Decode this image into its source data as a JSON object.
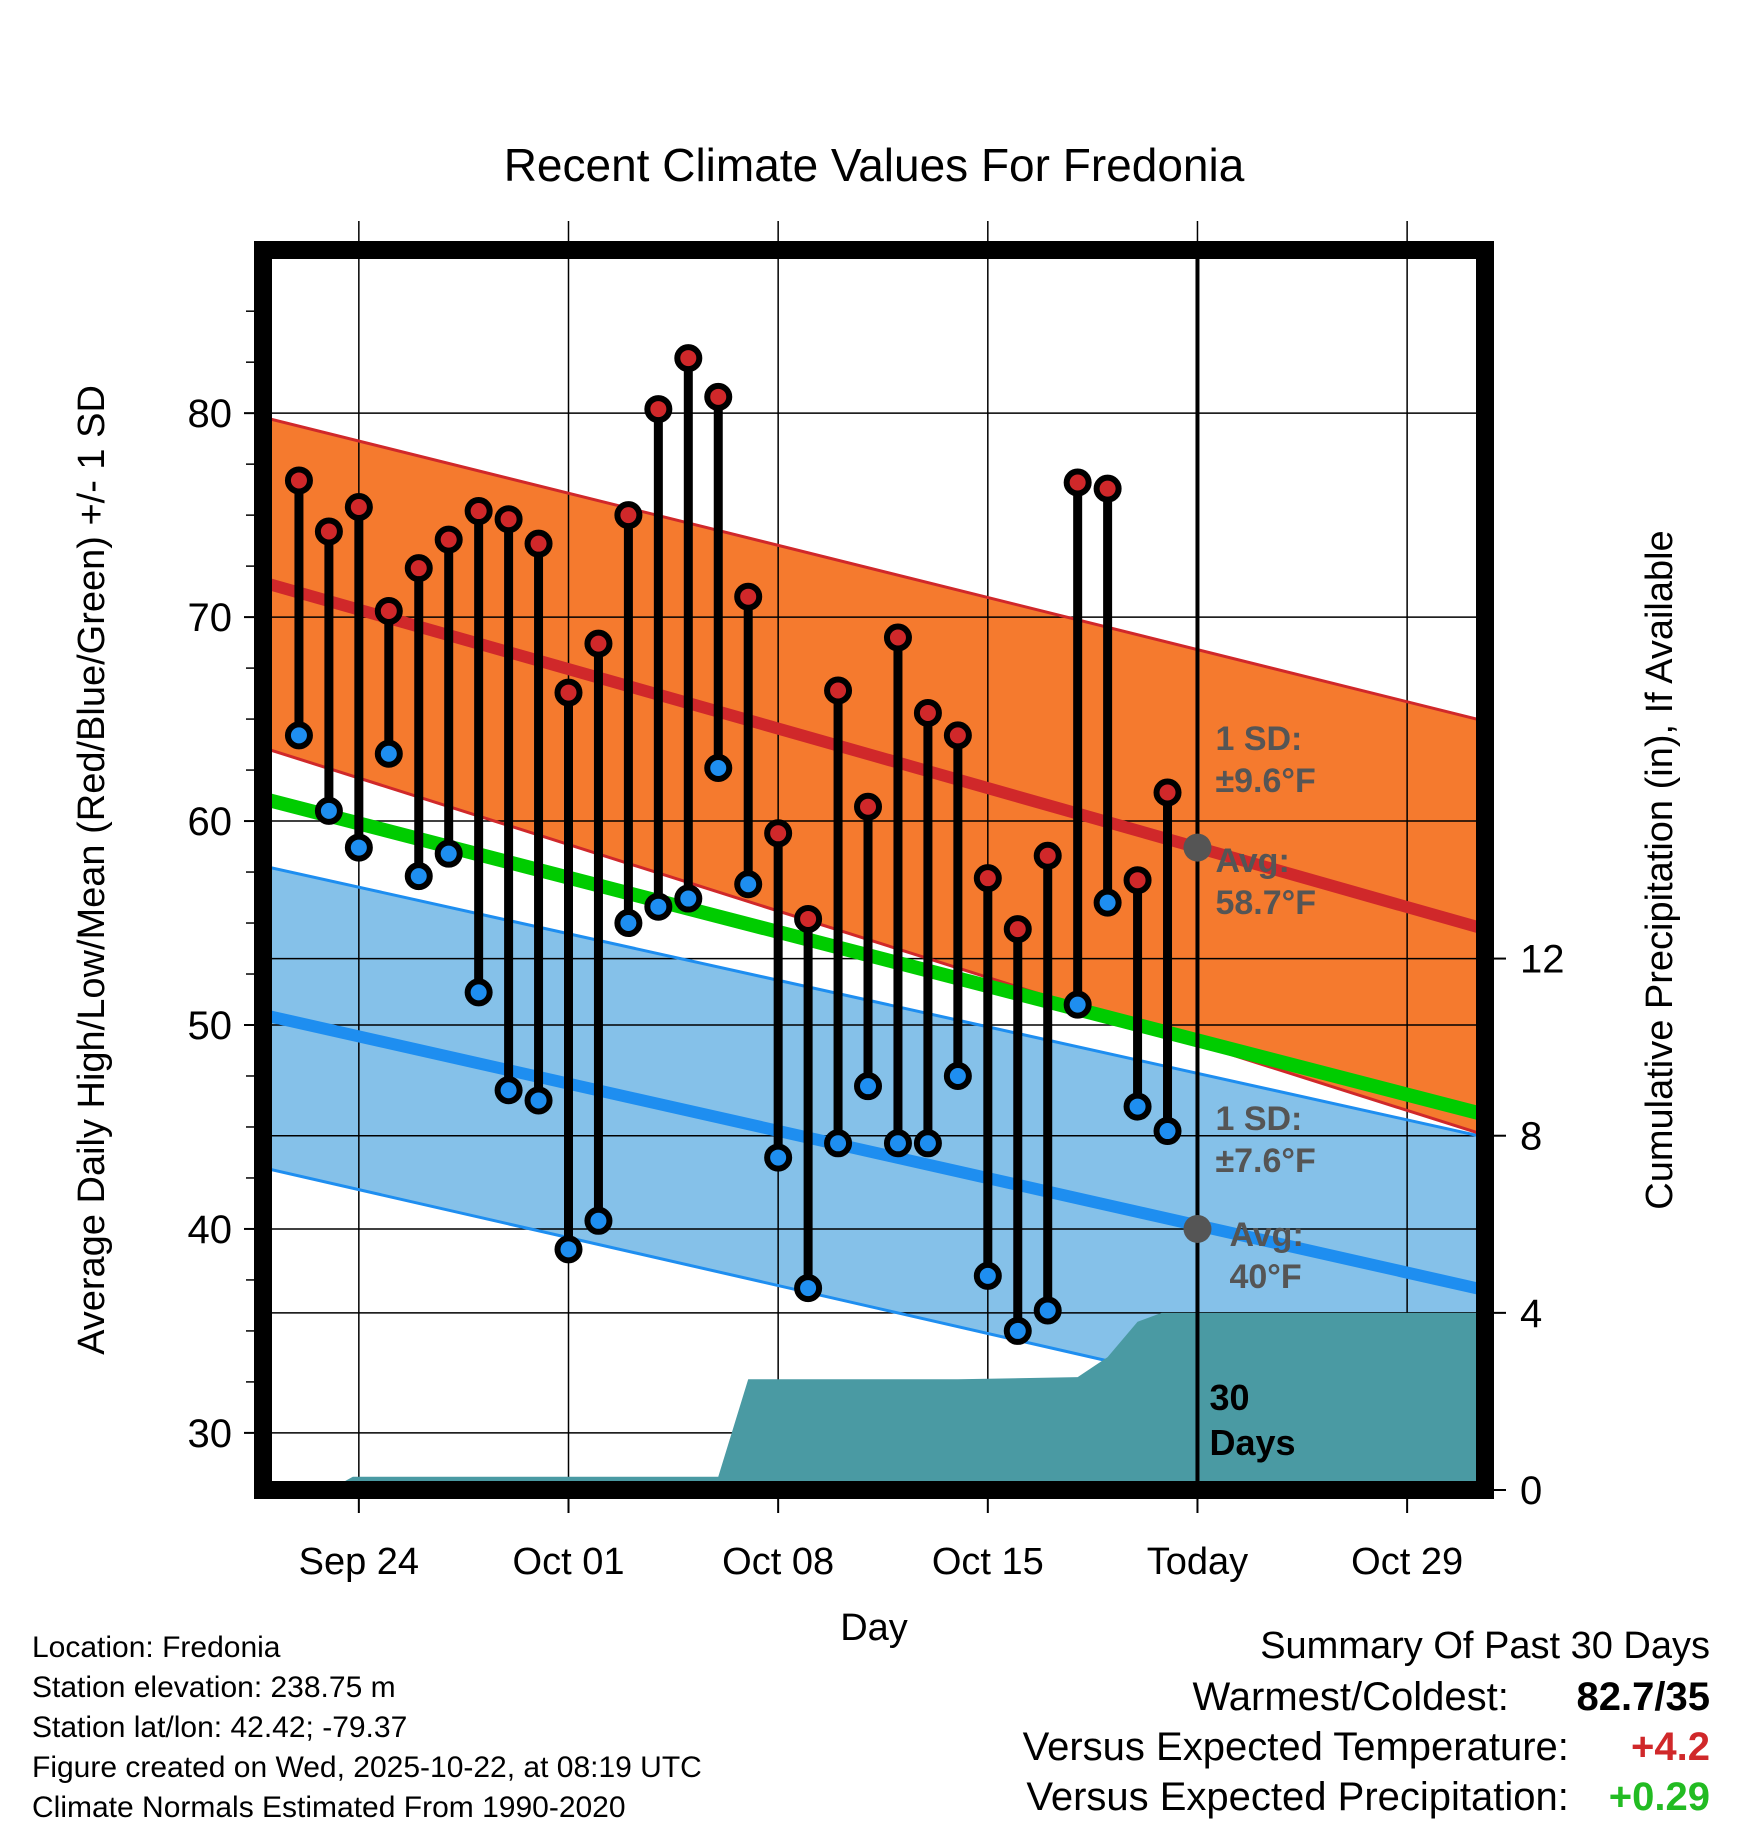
{
  "chart_data": {
    "type": "line",
    "title": "Recent Climate Values For Fredonia",
    "xlabel": "Day",
    "ylabel": "Average Daily High/Low/Mean (Red/Blue/Green) +/- 1 SD",
    "y2label": "Cumulative Precipitation (in), If Available",
    "xlim": [
      -3.2,
      37.6
    ],
    "ylim": [
      27.2,
      88
    ],
    "y2lim": [
      0,
      28
    ],
    "x_ticks": [
      {
        "x": 0,
        "label": "Sep 24"
      },
      {
        "x": 7,
        "label": "Oct 01"
      },
      {
        "x": 14,
        "label": "Oct 08"
      },
      {
        "x": 21,
        "label": "Oct 15"
      },
      {
        "x": 28,
        "label": "Today"
      },
      {
        "x": 35,
        "label": "Oct 29"
      }
    ],
    "y_ticks": [
      30,
      40,
      50,
      60,
      70,
      80
    ],
    "y_minor_ticks": [
      32.5,
      35,
      37.5,
      42.5,
      45,
      47.5,
      52.5,
      55,
      57.5,
      62.5,
      65,
      67.5,
      72.5,
      75,
      77.5,
      82.5,
      85
    ],
    "y2_ticks": [
      0,
      4,
      8,
      12
    ],
    "today_x": 28,
    "normals_x": [
      -3.2,
      37.6
    ],
    "normal_high": [
      71.7,
      54.7
    ],
    "normal_high_upper": [
      79.8,
      64.9
    ],
    "normal_high_lower": [
      63.6,
      44.6
    ],
    "normal_low": [
      50.5,
      37.0
    ],
    "normal_low_upper": [
      57.8,
      44.5
    ],
    "normal_low_lower": [
      43.0,
      29.3
    ],
    "normal_mean": [
      61.1,
      45.6
    ],
    "days": [
      -2,
      -1,
      0,
      1,
      2,
      3,
      4,
      5,
      6,
      7,
      8,
      9,
      10,
      11,
      12,
      13,
      14,
      15,
      16,
      17,
      18,
      19,
      20,
      21,
      22,
      23,
      24,
      25,
      26,
      27
    ],
    "highs": [
      76.7,
      74.2,
      75.4,
      70.3,
      72.4,
      73.8,
      75.2,
      74.8,
      73.6,
      66.3,
      68.7,
      75.0,
      80.2,
      82.7,
      80.8,
      71.0,
      59.4,
      55.2,
      66.4,
      60.7,
      69.0,
      65.3,
      64.2,
      57.2,
      54.7,
      58.3,
      76.6,
      76.3,
      57.1,
      61.4
    ],
    "lows": [
      64.2,
      60.5,
      58.7,
      63.3,
      57.3,
      58.4,
      51.6,
      46.8,
      46.3,
      39.0,
      40.4,
      55.0,
      55.8,
      56.2,
      62.6,
      56.9,
      43.5,
      37.1,
      44.2,
      47.0,
      44.2,
      44.2,
      47.5,
      37.7,
      35.0,
      36.0,
      51.0,
      56.0,
      46.0,
      44.8
    ],
    "precip": {
      "x": [
        -3.2,
        -1.0,
        -0.2,
        5.0,
        12.0,
        13.0,
        13.9,
        20.0,
        24.0,
        25.0,
        26.0,
        26.8,
        27.5,
        37.6
      ],
      "y": [
        0,
        0,
        0.3,
        0.3,
        0.3,
        2.5,
        2.5,
        2.5,
        2.55,
        3.0,
        3.8,
        4.0,
        4.0,
        4.0
      ]
    },
    "annotations": {
      "high_sd_label": "1 SD:",
      "high_sd_value": "±9.6°F",
      "high_avg_label": "Avg:",
      "high_avg_value": "58.7°F",
      "high_avg": 58.7,
      "low_sd_label": "1 SD:",
      "low_sd_value": "±7.6°F",
      "low_avg_label": "Avg:",
      "low_avg_value": "40°F",
      "low_avg": 40,
      "days_label_1": "30",
      "days_label_2": "Days"
    },
    "colors": {
      "high_band": "#f57a2e",
      "high_line": "#d0282a",
      "low_band": "#85c1e9",
      "low_line": "#1e8ef0",
      "mean_line": "#00cc00",
      "precip": "#4a9aa3",
      "high_marker": "#d0282a",
      "low_marker": "#1e8ef0",
      "annotation": "#555555",
      "today_marker": "#555555"
    }
  },
  "info": {
    "location": "Location: Fredonia",
    "elevation": "Station elevation: 238.75 m",
    "latlon": "Station lat/lon: 42.42; -79.37",
    "created": "Figure created on Wed, 2025-10-22, at 08:19 UTC",
    "normals": "Climate Normals Estimated From 1990-2020"
  },
  "summary": {
    "title": "Summary Of Past 30 Days",
    "warm_cold_label": "Warmest/Coldest:",
    "warm_cold_value": "82.7/35",
    "temp_label": "Versus Expected Temperature:",
    "temp_value": "+4.2",
    "temp_color": "#d0282a",
    "precip_label": "Versus Expected Precipitation:",
    "precip_value": "+0.29",
    "precip_color": "#22bb22"
  }
}
